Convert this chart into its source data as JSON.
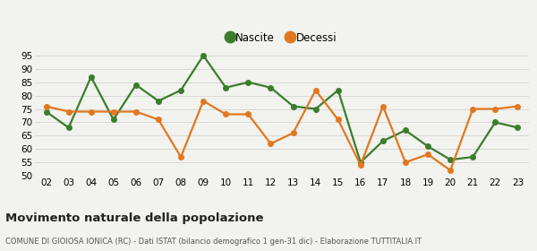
{
  "years": [
    2,
    3,
    4,
    5,
    6,
    7,
    8,
    9,
    10,
    11,
    12,
    13,
    14,
    15,
    16,
    17,
    18,
    19,
    20,
    21,
    22,
    23
  ],
  "nascite": [
    74,
    68,
    87,
    71,
    84,
    78,
    82,
    95,
    83,
    85,
    83,
    76,
    75,
    82,
    55,
    63,
    67,
    61,
    56,
    57,
    70,
    68
  ],
  "decessi": [
    76,
    74,
    74,
    74,
    74,
    71,
    57,
    78,
    73,
    73,
    62,
    66,
    82,
    71,
    54,
    76,
    55,
    58,
    52,
    75,
    75,
    76
  ],
  "nascite_color": "#3a7d2c",
  "decessi_color": "#e07820",
  "ylim": [
    50,
    97
  ],
  "yticks": [
    50,
    55,
    60,
    65,
    70,
    75,
    80,
    85,
    90,
    95
  ],
  "title": "Movimento naturale della popolazione",
  "subtitle": "COMUNE DI GIOIOSA IONICA (RC) - Dati ISTAT (bilancio demografico 1 gen-31 dic) - Elaborazione TUTTITALIA.IT",
  "bg_color": "#f2f2ee",
  "grid_color": "#d8d8d8",
  "legend_nascite": "Nascite",
  "legend_decessi": "Decessi",
  "marker_size": 4,
  "line_width": 1.6
}
